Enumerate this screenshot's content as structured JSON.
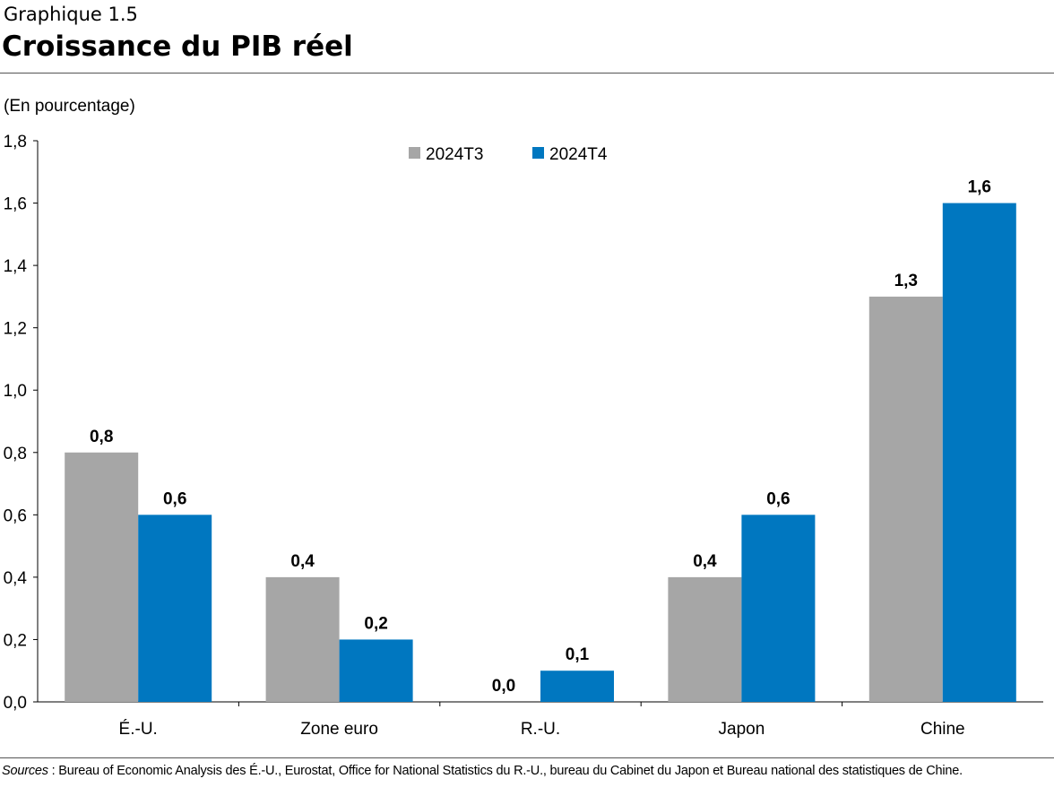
{
  "header": {
    "kicker": "Graphique 1.5",
    "title": "Croissance du PIB réel"
  },
  "unit_label": "(En pourcentage)",
  "sources": {
    "prefix": "Sources",
    "text": " : Bureau of Economic Analysis des É.-U., Eurostat, Office for National Statistics du R.-U., bureau du Cabinet du Japon et Bureau national des statistiques de Chine."
  },
  "chart_data": {
    "type": "bar",
    "title": "Croissance du PIB réel",
    "ylabel": "(En pourcentage)",
    "xlabel": "",
    "ylim": [
      0,
      1.8
    ],
    "yticks": [
      0,
      0.2,
      0.4,
      0.6,
      0.8,
      1.0,
      1.2,
      1.4,
      1.6,
      1.8
    ],
    "ytick_labels": [
      "0,0",
      "0,2",
      "0,4",
      "0,6",
      "0,8",
      "1,0",
      "1,2",
      "1,4",
      "1,6",
      "1,8"
    ],
    "grid": false,
    "legend_position": "top-center",
    "categories": [
      "É.-U.",
      "Zone euro",
      "R.-U.",
      "Japon",
      "Chine"
    ],
    "series": [
      {
        "name": "2024T3",
        "color": "#a6a6a6",
        "values": [
          0.8,
          0.4,
          0.0,
          0.4,
          1.3
        ],
        "labels": [
          "0,8",
          "0,4",
          "0,0",
          "0,4",
          "1,3"
        ]
      },
      {
        "name": "2024T4",
        "color": "#0077c0",
        "values": [
          0.6,
          0.2,
          0.1,
          0.6,
          1.6
        ],
        "labels": [
          "0,6",
          "0,2",
          "0,1",
          "0,6",
          "1,6"
        ]
      }
    ]
  }
}
